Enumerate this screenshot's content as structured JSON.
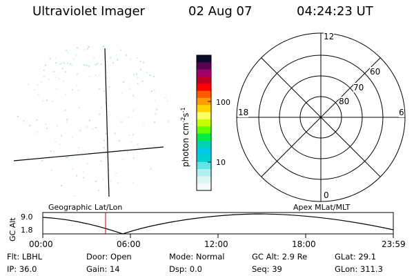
{
  "header": {
    "title": "Ultraviolet Imager",
    "date": "02 Aug 07",
    "time": "04:24:23 UT"
  },
  "colorbar": {
    "title": "photon cm-2s-1",
    "ticks": [
      "100",
      "10"
    ],
    "colors": [
      "#0b0b2c",
      "#5a0050",
      "#a0006a",
      "#c00020",
      "#ff0000",
      "#ff5a00",
      "#ff9d00",
      "#ffd200",
      "#ffff66",
      "#c8ff00",
      "#64ff00",
      "#00ee40",
      "#00d2b0",
      "#00c8e6",
      "#00d2d2",
      "#60e6e6",
      "#b0f0f0",
      "#dcf4f4",
      "#f4fafa"
    ]
  },
  "polar": {
    "mlt_labels": {
      "top": "12",
      "left": "18",
      "right": "6",
      "bottom": "0"
    },
    "lat_labels": [
      "60",
      "70",
      "80"
    ]
  },
  "timeline": {
    "left_label": "Geographic Lat/Lon",
    "right_label": "Apex MLat/MLT",
    "ylabel": "GC Alt",
    "yticks": [
      "9.0",
      "1.8"
    ],
    "xticks": [
      "00:00",
      "06:00",
      "12:00",
      "18:00",
      "23:59"
    ],
    "marker_color": "#cc0000"
  },
  "status": {
    "rows": [
      [
        {
          "label": "Flt:",
          "value": "LBHL"
        },
        {
          "label": "Door:",
          "value": "Open"
        },
        {
          "label": "Mode:",
          "value": "Normal"
        },
        {
          "label": "GC Alt:",
          "value": "2.9 Re"
        },
        {
          "label": "GLat:",
          "value": "29.1"
        }
      ],
      [
        {
          "label": "IP:",
          "value": "36.0"
        },
        {
          "label": "Gain:",
          "value": "14"
        },
        {
          "label": "Dsp:",
          "value": "0.0"
        },
        {
          "label": "Seq:",
          "value": "39"
        },
        {
          "label": "GLon:",
          "value": "311.3"
        }
      ]
    ]
  }
}
